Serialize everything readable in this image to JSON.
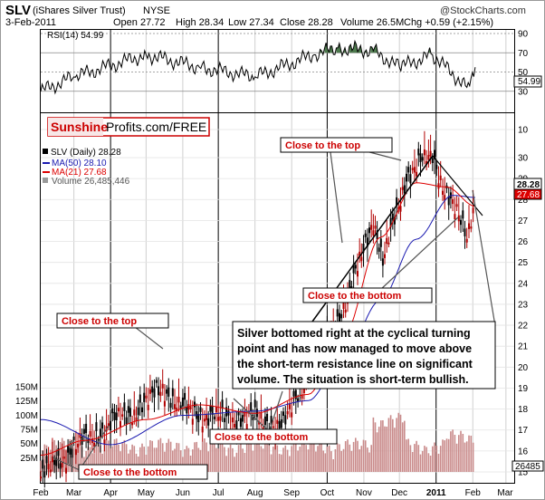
{
  "header": {
    "symbol": "SLV",
    "name": "(iShares Silver Trust)",
    "exchange": "NYSE",
    "date": "3-Feb-2011",
    "open": "Open 27.72",
    "high": "High 28.34",
    "low": "Low 27.34",
    "close": "Close 28.28",
    "volume": "Volume 26.5M",
    "chg": "Chg +0.59 (+2.15%)",
    "watermark": "@StockCharts.com"
  },
  "rsi_panel": {
    "label": "RSI(14) 54.99",
    "ticks": [
      "90",
      "70",
      "50",
      "30"
    ],
    "current": "54.99"
  },
  "price_panel": {
    "legend_title": "SLV (Daily) 28.28",
    "legend_ma50": "MA(50) 28.10",
    "legend_ma21": "MA(21) 27.68",
    "legend_volume": "Volume 26,485,446",
    "y_ticks": [
      "30",
      "29",
      "28",
      "27",
      "26",
      "25",
      "24",
      "23",
      "22",
      "21",
      "20",
      "19",
      "18",
      "17",
      "16",
      "15",
      "10"
    ],
    "last_price_label": "28.28",
    "ma_label": "27.68",
    "volume_ticks": [
      "150M",
      "125M",
      "100M",
      "75M",
      "50M",
      "25M"
    ],
    "last_volume_label": "26485"
  },
  "x_axis": {
    "labels": [
      "Feb",
      "Mar",
      "Apr",
      "May",
      "Jun",
      "Jul",
      "Aug",
      "Sep",
      "Oct",
      "Nov",
      "Dec",
      "2011",
      "Feb",
      "Mar"
    ]
  },
  "logo": {
    "part1": "Sunshine",
    "part2": "Profits.com/FREE"
  },
  "annotations": {
    "top_left": "Close to the top",
    "top_right": "Close to the top",
    "bottom_right": "Close to the bottom",
    "bottom_mid": "Close to the bottom",
    "bottom_left": "Close to the bottom"
  },
  "note": {
    "line1": "Silver bottomed right at the cyclical turning",
    "line2": "point and has now managed to move above",
    "line3": "the short-term resistance line on significant",
    "line4": "volume. The situation is short-term bullish."
  },
  "colors": {
    "candle": "#000000",
    "ma50": "#1a1ab0",
    "ma21": "#dd0000",
    "volume": "#c98a8a",
    "rsi_fill": "#4d7a4d",
    "accent": "#cc0000"
  },
  "chart_data": {
    "type": "line",
    "title": "SLV (iShares Silver Trust) NYSE",
    "series": [
      {
        "name": "SLV (Daily)",
        "dates": [
          "2010-02-01",
          "2010-03-01",
          "2010-04-01",
          "2010-05-01",
          "2010-05-15",
          "2010-06-01",
          "2010-07-01",
          "2010-08-01",
          "2010-08-25",
          "2010-09-15",
          "2010-10-01",
          "2010-10-20",
          "2010-11-09",
          "2010-11-17",
          "2010-12-07",
          "2010-12-29",
          "2011-01-10",
          "2011-01-27",
          "2011-02-03"
        ],
        "values": [
          14.8,
          16.2,
          17.3,
          18.3,
          19.1,
          18.0,
          17.6,
          17.6,
          17.2,
          19.8,
          21.5,
          23.5,
          27.2,
          25.0,
          29.2,
          30.2,
          28.3,
          26.3,
          28.28
        ]
      },
      {
        "name": "MA(50)",
        "dates": [
          "2010-02-01",
          "2010-04-01",
          "2010-06-01",
          "2010-08-01",
          "2010-09-15",
          "2010-10-15",
          "2010-11-15",
          "2010-12-15",
          "2011-01-15",
          "2011-02-03"
        ],
        "values": [
          17.5,
          16.3,
          17.7,
          17.9,
          18.4,
          20.5,
          23.2,
          26.1,
          28.2,
          28.1
        ]
      },
      {
        "name": "MA(21)",
        "dates": [
          "2010-02-01",
          "2010-03-10",
          "2010-05-01",
          "2010-06-15",
          "2010-08-01",
          "2010-09-15",
          "2010-10-15",
          "2010-11-15",
          "2010-12-15",
          "2011-01-10",
          "2011-02-03"
        ],
        "values": [
          15.8,
          16.5,
          17.5,
          18.2,
          17.8,
          18.7,
          21.5,
          26.2,
          28.8,
          28.6,
          27.68
        ]
      },
      {
        "name": "RSI(14)",
        "dates": [
          "2010-02-01",
          "2010-03-01",
          "2010-05-01",
          "2010-06-15",
          "2010-08-01",
          "2010-09-20",
          "2010-10-10",
          "2010-11-09",
          "2010-12-01",
          "2010-12-29",
          "2011-01-27",
          "2011-02-03"
        ],
        "values": [
          30,
          45,
          68,
          55,
          45,
          68,
          75,
          72,
          55,
          68,
          34,
          54.99
        ]
      }
    ],
    "xlabel": "",
    "ylabel": "",
    "ylim": [
      15,
      30
    ],
    "rsi_ylim": [
      10,
      90
    ],
    "grid": true,
    "legend": "top-left"
  }
}
